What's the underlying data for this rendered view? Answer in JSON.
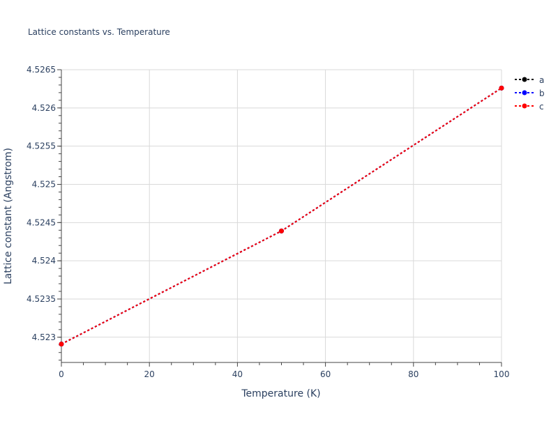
{
  "chart_data": {
    "type": "line",
    "title": "Lattice constants vs. Temperature",
    "xlabel": "Temperature (K)",
    "ylabel": "Lattice constant (Angstrom)",
    "xlim": [
      0,
      100
    ],
    "ylim": [
      4.52267,
      4.5265
    ],
    "xticks": [
      "0",
      "20",
      "40",
      "60",
      "80",
      "100"
    ],
    "yticks": [
      "4.523",
      "4.5235",
      "4.524",
      "4.5245",
      "4.525",
      "4.5255",
      "4.526",
      "4.5265"
    ],
    "grid": true,
    "legend_position": "top-right",
    "x": [
      0,
      50,
      100
    ],
    "series": [
      {
        "name": "a",
        "color": "#000000",
        "values": [
          4.52291,
          4.52439,
          4.52626
        ]
      },
      {
        "name": "b",
        "color": "#0000ff",
        "values": [
          4.52291,
          4.52439,
          4.52626
        ]
      },
      {
        "name": "c",
        "color": "#ff0000",
        "values": [
          4.52291,
          4.52439,
          4.52626
        ]
      }
    ]
  }
}
